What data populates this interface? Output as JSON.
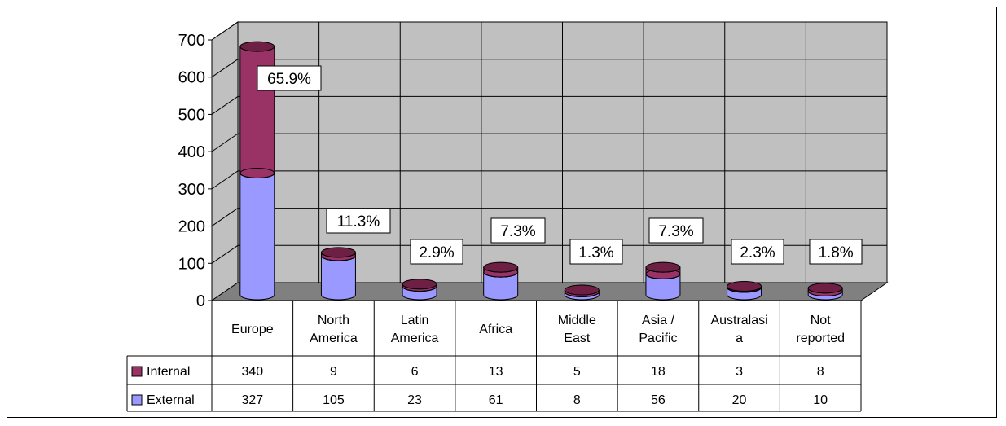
{
  "colors": {
    "internal": "#993366",
    "internal_top": "#6e1f44",
    "external": "#9999ff",
    "wall": "#c0c0c0",
    "floor": "#808080"
  },
  "chart_data": {
    "type": "bar",
    "stacked": true,
    "style": "3d-cylinder",
    "categories": [
      "Europe",
      "North America",
      "Latin America",
      "Africa",
      "Middle East",
      "Asia / Pacific",
      "Australasia",
      "Not reported"
    ],
    "category_labels": [
      [
        "Europe"
      ],
      [
        "North",
        "America"
      ],
      [
        "Latin",
        "America"
      ],
      [
        "Africa"
      ],
      [
        "Middle",
        "East"
      ],
      [
        "Asia /",
        "Pacific"
      ],
      [
        "Australasi",
        "a"
      ],
      [
        "Not",
        "reported"
      ]
    ],
    "series": [
      {
        "name": "External",
        "values": [
          327,
          105,
          23,
          61,
          8,
          56,
          20,
          10
        ]
      },
      {
        "name": "Internal",
        "values": [
          340,
          9,
          6,
          13,
          5,
          18,
          3,
          8
        ]
      }
    ],
    "table_rows": [
      {
        "name": "Internal",
        "values": [
          340,
          9,
          6,
          13,
          5,
          18,
          3,
          8
        ]
      },
      {
        "name": "External",
        "values": [
          327,
          105,
          23,
          61,
          8,
          56,
          20,
          10
        ]
      }
    ],
    "data_labels": [
      "65.9%",
      "11.3%",
      "2.9%",
      "7.3%",
      "1.3%",
      "7.3%",
      "2.3%",
      "1.8%"
    ],
    "yticks": [
      0,
      100,
      200,
      300,
      400,
      500,
      600,
      700
    ],
    "ylim": [
      0,
      700
    ],
    "grid": true,
    "legend": "data-table"
  }
}
